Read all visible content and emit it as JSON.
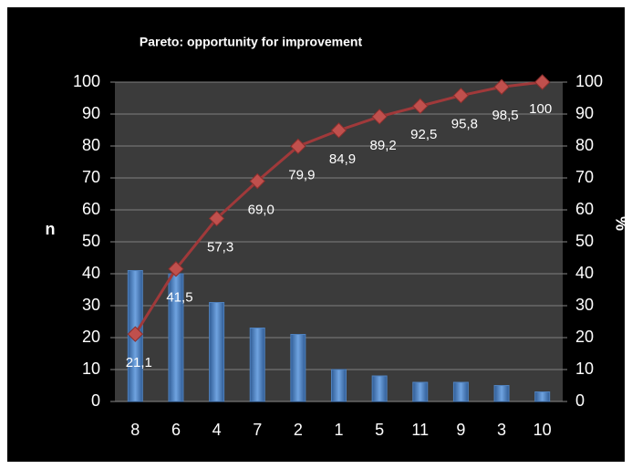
{
  "chart_data": {
    "type": "pareto",
    "title": "Pareto: opportunity for improvement",
    "y_label": "n",
    "y2_label": "%",
    "categories": [
      "8",
      "6",
      "4",
      "7",
      "2",
      "1",
      "5",
      "11",
      "9",
      "3",
      "10"
    ],
    "series": [
      {
        "name": "n",
        "color": "#4f81bd",
        "values": [
          41,
          40,
          31,
          23,
          21,
          10,
          8,
          6,
          6,
          5,
          3
        ]
      },
      {
        "name": "%",
        "color": "#c0504d",
        "axis": "y2",
        "values": [
          21.1,
          41.5,
          57.3,
          69.0,
          79.9,
          84.9,
          89.2,
          92.5,
          95.8,
          98.5,
          100
        ],
        "value_labels": [
          "21,1",
          "41,5",
          "57,3",
          "69,0",
          "79,9",
          "84,9",
          "89,2",
          "92,5",
          "95,8",
          "98,5",
          "100"
        ]
      }
    ],
    "ylim": [
      0,
      100
    ],
    "yticks": [
      0,
      10,
      20,
      30,
      40,
      50,
      60,
      70,
      80,
      90,
      100
    ],
    "y2lim": [
      0,
      100
    ],
    "y2ticks": [
      0,
      10,
      20,
      30,
      40,
      50,
      60,
      70,
      80,
      90,
      100
    ],
    "grid": true
  }
}
